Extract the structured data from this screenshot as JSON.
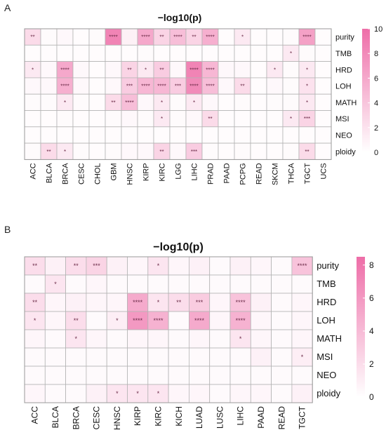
{
  "colors": {
    "low": "#ffffff",
    "high": "#ee6ea8",
    "grid": "#b4b4b4",
    "star": "#6b2a47"
  },
  "chart_data": [
    {
      "type": "heatmap",
      "panel_label": "A",
      "title": "−log10(p)",
      "rows": [
        "purity",
        "TMB",
        "HRD",
        "LOH",
        "MATH",
        "MSI",
        "NEO",
        "ploidy"
      ],
      "columns": [
        "ACC",
        "BLCA",
        "BRCA",
        "CESC",
        "CHOL",
        "GBM",
        "HNSC",
        "KIRP",
        "KIRC",
        "LGG",
        "LIHC",
        "PRAD",
        "PAAD",
        "PCPG",
        "READ",
        "SKCM",
        "THCA",
        "TGCT",
        "UCS"
      ],
      "values": [
        [
          2.5,
          0.3,
          0.5,
          0.2,
          0.3,
          8.5,
          1.0,
          6.0,
          3.0,
          4.5,
          3.0,
          5.5,
          0.2,
          1.5,
          0.2,
          0.2,
          0.3,
          6.5,
          0.2
        ],
        [
          0.2,
          0.2,
          0.2,
          0.2,
          0.2,
          0.2,
          0.2,
          0.3,
          0.2,
          0.2,
          0.2,
          0.2,
          0.2,
          0.2,
          0.2,
          0.2,
          1.5,
          0.3,
          0.2
        ],
        [
          1.5,
          0.5,
          6.0,
          0.5,
          0.2,
          0.5,
          3.0,
          1.5,
          3.5,
          0.5,
          8.5,
          5.0,
          0.5,
          0.5,
          0.2,
          1.5,
          0.3,
          1.5,
          0.2
        ],
        [
          0.5,
          0.5,
          5.5,
          0.5,
          0.2,
          0.5,
          3.5,
          5.0,
          5.0,
          3.5,
          8.0,
          4.5,
          0.5,
          2.5,
          0.2,
          0.5,
          0.3,
          2.0,
          0.2
        ],
        [
          0.3,
          0.3,
          1.5,
          0.3,
          0.2,
          2.5,
          4.5,
          0.5,
          1.5,
          0.3,
          1.5,
          0.5,
          0.2,
          0.3,
          0.2,
          0.3,
          0.3,
          1.5,
          0.2
        ],
        [
          0.2,
          0.2,
          0.3,
          0.2,
          0.2,
          0.3,
          0.5,
          0.3,
          1.5,
          0.3,
          0.5,
          2.5,
          0.2,
          0.2,
          0.2,
          0.2,
          1.5,
          3.0,
          0.2
        ],
        [
          0.2,
          0.2,
          0.2,
          0.2,
          0.2,
          0.2,
          0.2,
          0.2,
          0.2,
          0.2,
          0.2,
          0.2,
          0.2,
          0.2,
          0.2,
          0.2,
          0.2,
          0.2,
          0.2
        ],
        [
          0.3,
          2.5,
          1.5,
          0.3,
          0.2,
          0.3,
          0.5,
          0.5,
          3.0,
          0.5,
          3.5,
          0.3,
          0.2,
          0.3,
          0.2,
          0.2,
          0.3,
          2.5,
          0.2
        ]
      ],
      "annotations": [
        [
          "**",
          "",
          "",
          "",
          "",
          "****",
          "",
          "****",
          "**",
          "****",
          "**",
          "****",
          "",
          "*",
          "",
          "",
          "",
          "****",
          ""
        ],
        [
          "",
          "",
          "",
          "",
          "",
          "",
          "",
          "",
          "",
          "",
          "",
          "",
          "",
          "",
          "",
          "",
          "*",
          "",
          ""
        ],
        [
          "*",
          "",
          "****",
          "",
          "",
          "",
          "**",
          "*",
          "**",
          "",
          "****",
          "****",
          "",
          "",
          "",
          "*",
          "",
          "*",
          ""
        ],
        [
          "",
          "",
          "****",
          "",
          "",
          "",
          "***",
          "****",
          "****",
          "***",
          "****",
          "****",
          "",
          "**",
          "",
          "",
          "",
          "*",
          ""
        ],
        [
          "",
          "",
          "*",
          "",
          "",
          "**",
          "****",
          "",
          "*",
          "",
          "*",
          "",
          "",
          "",
          "",
          "",
          "",
          "*",
          ""
        ],
        [
          "",
          "",
          "",
          "",
          "",
          "",
          "",
          "",
          "*",
          "",
          "",
          "**",
          "",
          "",
          "",
          "",
          "*",
          "***",
          ""
        ],
        [
          "",
          "",
          "",
          "",
          "",
          "",
          "",
          "",
          "",
          "",
          "",
          "",
          "",
          "",
          "",
          "",
          "",
          "",
          ""
        ],
        [
          "",
          "**",
          "*",
          "",
          "",
          "",
          "",
          "",
          "**",
          "",
          "***",
          "",
          "",
          "",
          "",
          "",
          "",
          "**",
          ""
        ]
      ],
      "legend": {
        "ticks": [
          0,
          2,
          4,
          6,
          8,
          10
        ],
        "range": [
          0,
          10
        ]
      }
    },
    {
      "type": "heatmap",
      "panel_label": "B",
      "title": "−log10(p)",
      "rows": [
        "purity",
        "TMB",
        "HRD",
        "LOH",
        "MATH",
        "MSI",
        "NEO",
        "ploidy"
      ],
      "columns": [
        "ACC",
        "BLCA",
        "BRCA",
        "CESC",
        "HNSC",
        "KIRP",
        "KIRC",
        "KICH",
        "LUAD",
        "LUSC",
        "LIHC",
        "PAAD",
        "READ",
        "TGCT"
      ],
      "values": [
        [
          2.0,
          0.8,
          2.0,
          2.5,
          0.8,
          0.5,
          1.5,
          0.5,
          0.8,
          0.3,
          0.8,
          0.5,
          0.3,
          3.5
        ],
        [
          0.3,
          1.5,
          0.3,
          0.5,
          0.3,
          0.3,
          0.3,
          0.3,
          0.3,
          0.3,
          0.3,
          0.3,
          0.3,
          0.3
        ],
        [
          2.0,
          0.5,
          0.8,
          0.5,
          0.5,
          5.0,
          1.5,
          2.0,
          3.0,
          0.5,
          3.5,
          0.8,
          0.3,
          0.5
        ],
        [
          1.5,
          0.5,
          2.0,
          0.3,
          1.0,
          6.0,
          4.5,
          0.3,
          5.0,
          0.5,
          4.5,
          0.5,
          0.3,
          0.5
        ],
        [
          0.5,
          0.3,
          1.5,
          0.5,
          0.3,
          0.5,
          0.5,
          0.3,
          0.5,
          0.3,
          1.5,
          0.5,
          0.3,
          0.5
        ],
        [
          0.3,
          0.3,
          0.3,
          0.3,
          0.3,
          0.3,
          0.3,
          0.3,
          0.3,
          0.3,
          0.3,
          0.8,
          0.3,
          1.0
        ],
        [
          0.3,
          0.3,
          0.3,
          0.3,
          0.3,
          0.3,
          0.3,
          0.3,
          0.3,
          0.3,
          0.3,
          0.3,
          0.3,
          0.3
        ],
        [
          0.5,
          0.3,
          0.3,
          0.8,
          1.5,
          1.5,
          1.5,
          0.5,
          0.5,
          0.3,
          0.5,
          0.5,
          0.3,
          0.8
        ]
      ],
      "annotations": [
        [
          "**",
          "",
          "**",
          "***",
          "",
          "",
          "*",
          "",
          "",
          "",
          "",
          "",
          "",
          "****"
        ],
        [
          "",
          "*",
          "",
          "",
          "",
          "",
          "",
          "",
          "",
          "",
          "",
          "",
          "",
          ""
        ],
        [
          "**",
          "",
          "",
          "",
          "",
          "****",
          "*",
          "**",
          "***",
          "",
          "****",
          "",
          "",
          ""
        ],
        [
          "*",
          "",
          "**",
          "",
          "*",
          "****",
          "****",
          "",
          "****",
          "",
          "****",
          "",
          "",
          ""
        ],
        [
          "",
          "",
          "*",
          "",
          "",
          "",
          "",
          "",
          "",
          "",
          "*",
          "",
          "",
          ""
        ],
        [
          "",
          "",
          "",
          "",
          "",
          "",
          "",
          "",
          "",
          "",
          "",
          "",
          "",
          "*"
        ],
        [
          "",
          "",
          "",
          "",
          "",
          "",
          "",
          "",
          "",
          "",
          "",
          "",
          "",
          ""
        ],
        [
          "",
          "",
          "",
          "",
          "*",
          "*",
          "*",
          "",
          "",
          "",
          "",
          "",
          "",
          ""
        ]
      ],
      "legend": {
        "ticks": [
          0,
          2,
          4,
          6,
          8
        ],
        "range": [
          0,
          8.5
        ]
      }
    }
  ]
}
